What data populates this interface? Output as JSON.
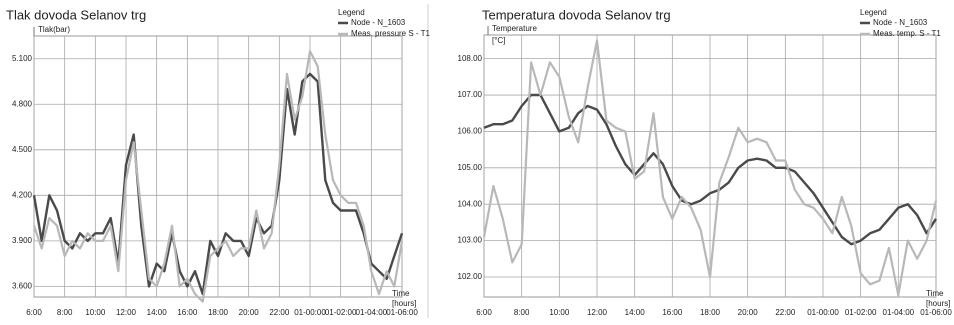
{
  "chart_data": [
    {
      "type": "line",
      "title": "Tlak dovoda Selanov trg",
      "y_label": "Tlak(bar)",
      "x_label": "Time",
      "x_unit": "[hours]",
      "legend_title": "Legend",
      "legend": "top-right",
      "grid": true,
      "x": [
        "6:00",
        "6:30",
        "7:00",
        "7:30",
        "8:00",
        "8:30",
        "9:00",
        "9:30",
        "10:00",
        "10:30",
        "11:00",
        "11:30",
        "12:00",
        "12:30",
        "13:00",
        "13:30",
        "14:00",
        "14:30",
        "15:00",
        "15:30",
        "16:00",
        "16:30",
        "17:00",
        "17:30",
        "18:00",
        "18:30",
        "19:00",
        "19:30",
        "20:00",
        "20:30",
        "21:00",
        "21:30",
        "22:00",
        "22:30",
        "23:00",
        "23:30",
        "01-00:00",
        "01-00:30",
        "01-01:00",
        "01-01:30",
        "01-02:00",
        "01-02:30",
        "01-03:00",
        "01-03:30",
        "01-04:00",
        "01-04:30",
        "01-05:00",
        "01-05:30",
        "01-06:00"
      ],
      "xlim": [
        "6:00",
        "01-06:00"
      ],
      "xticks": [
        "6:00",
        "8:00",
        "10:00",
        "12:00",
        "14:00",
        "16:00",
        "18:00",
        "20:00",
        "22:00",
        "01-00:00",
        "01-02:00",
        "01-04:00",
        "01-06:00"
      ],
      "ylim": [
        3.53,
        5.25
      ],
      "yticks": [
        {
          "value": 3.6,
          "label": "3.600"
        },
        {
          "value": 3.9,
          "label": "3.900"
        },
        {
          "value": 4.2,
          "label": "4.200"
        },
        {
          "value": 4.5,
          "label": "4.500"
        },
        {
          "value": 4.8,
          "label": "4.800"
        },
        {
          "value": 5.1,
          "label": "5.100"
        }
      ],
      "series": [
        {
          "name": "Node - N_1603",
          "color": "#4a4a4a",
          "values": [
            4.2,
            3.9,
            4.2,
            4.1,
            3.9,
            3.85,
            3.95,
            3.9,
            3.95,
            3.95,
            4.05,
            3.75,
            4.4,
            4.6,
            4.0,
            3.6,
            3.75,
            3.7,
            3.95,
            3.7,
            3.6,
            3.7,
            3.55,
            3.9,
            3.8,
            3.95,
            3.9,
            3.9,
            3.8,
            4.05,
            3.95,
            4.0,
            4.3,
            4.9,
            4.6,
            4.95,
            5.0,
            4.95,
            4.3,
            4.15,
            4.1,
            4.1,
            4.1,
            3.95,
            3.75,
            3.7,
            3.65,
            3.8,
            3.95
          ]
        },
        {
          "name": "Meas. pressure S - T1",
          "color": "#b8b8b8",
          "values": [
            4.0,
            3.85,
            4.05,
            4.0,
            3.8,
            3.9,
            3.85,
            3.95,
            3.9,
            3.9,
            4.0,
            3.7,
            4.3,
            4.55,
            4.1,
            3.65,
            3.6,
            3.75,
            4.0,
            3.6,
            3.65,
            3.55,
            3.5,
            3.8,
            3.85,
            3.9,
            3.8,
            3.85,
            3.85,
            4.1,
            3.85,
            3.95,
            4.4,
            5.0,
            4.7,
            4.85,
            5.15,
            5.05,
            4.6,
            4.3,
            4.2,
            4.15,
            4.15,
            4.0,
            3.7,
            3.55,
            3.7,
            3.6,
            3.9
          ]
        }
      ]
    },
    {
      "type": "line",
      "title": "Temperatura dovoda Selanov trg",
      "y_label": "Temperature",
      "y_unit": "[°C]",
      "x_label": "Time",
      "x_unit": "[hours]",
      "legend_title": "Legend",
      "legend": "top-right",
      "grid": true,
      "x": [
        "6:00",
        "6:30",
        "7:00",
        "7:30",
        "8:00",
        "8:30",
        "9:00",
        "9:30",
        "10:00",
        "10:30",
        "11:00",
        "11:30",
        "12:00",
        "12:30",
        "13:00",
        "13:30",
        "14:00",
        "14:30",
        "15:00",
        "15:30",
        "16:00",
        "16:30",
        "17:00",
        "17:30",
        "18:00",
        "18:30",
        "19:00",
        "19:30",
        "20:00",
        "20:30",
        "21:00",
        "21:30",
        "22:00",
        "22:30",
        "23:00",
        "23:30",
        "01-00:00",
        "01-00:30",
        "01-01:00",
        "01-01:30",
        "01-02:00",
        "01-02:30",
        "01-03:00",
        "01-03:30",
        "01-04:00",
        "01-04:30",
        "01-05:00",
        "01-05:30",
        "01-06:00"
      ],
      "xlim": [
        "6:00",
        "01-06:00"
      ],
      "xticks": [
        "6:00",
        "8:00",
        "10:00",
        "12:00",
        "14:00",
        "16:00",
        "18:00",
        "20:00",
        "22:00",
        "01-00:00",
        "01-02:00",
        "01-04:00",
        "01-06:00"
      ],
      "ylim": [
        101.45,
        108.65
      ],
      "yticks": [
        {
          "value": 102,
          "label": "102.00"
        },
        {
          "value": 103,
          "label": "103.00"
        },
        {
          "value": 104,
          "label": "104.00"
        },
        {
          "value": 105,
          "label": "105.00"
        },
        {
          "value": 106,
          "label": "106.00"
        },
        {
          "value": 107,
          "label": "107.00"
        },
        {
          "value": 108,
          "label": "108.00"
        }
      ],
      "series": [
        {
          "name": "Node - N_1603",
          "color": "#4a4a4a",
          "values": [
            106.1,
            106.2,
            106.2,
            106.3,
            106.7,
            107.0,
            107.0,
            106.5,
            106.0,
            106.1,
            106.5,
            106.7,
            106.6,
            106.2,
            105.6,
            105.1,
            104.8,
            105.1,
            105.4,
            105.1,
            104.5,
            104.1,
            104.0,
            104.1,
            104.3,
            104.4,
            104.6,
            105.0,
            105.2,
            105.25,
            105.2,
            105.0,
            105.0,
            104.9,
            104.6,
            104.3,
            103.9,
            103.5,
            103.1,
            102.9,
            103.0,
            103.2,
            103.3,
            103.6,
            103.9,
            104.0,
            103.7,
            103.2,
            103.6
          ]
        },
        {
          "name": "Meas. temp. S - T1",
          "color": "#b8b8b8",
          "values": [
            103.1,
            104.5,
            103.6,
            102.4,
            102.9,
            107.9,
            107.0,
            107.9,
            107.5,
            106.4,
            105.7,
            107.2,
            108.5,
            106.3,
            106.1,
            106.0,
            104.7,
            104.9,
            106.5,
            104.2,
            103.6,
            104.2,
            103.9,
            103.3,
            102.0,
            104.6,
            105.3,
            106.1,
            105.7,
            105.8,
            105.7,
            105.2,
            105.2,
            104.4,
            104.0,
            103.9,
            103.6,
            103.2,
            104.2,
            103.4,
            102.1,
            101.8,
            101.9,
            102.8,
            101.5,
            103.0,
            102.5,
            103.0,
            104.1
          ]
        }
      ]
    }
  ]
}
